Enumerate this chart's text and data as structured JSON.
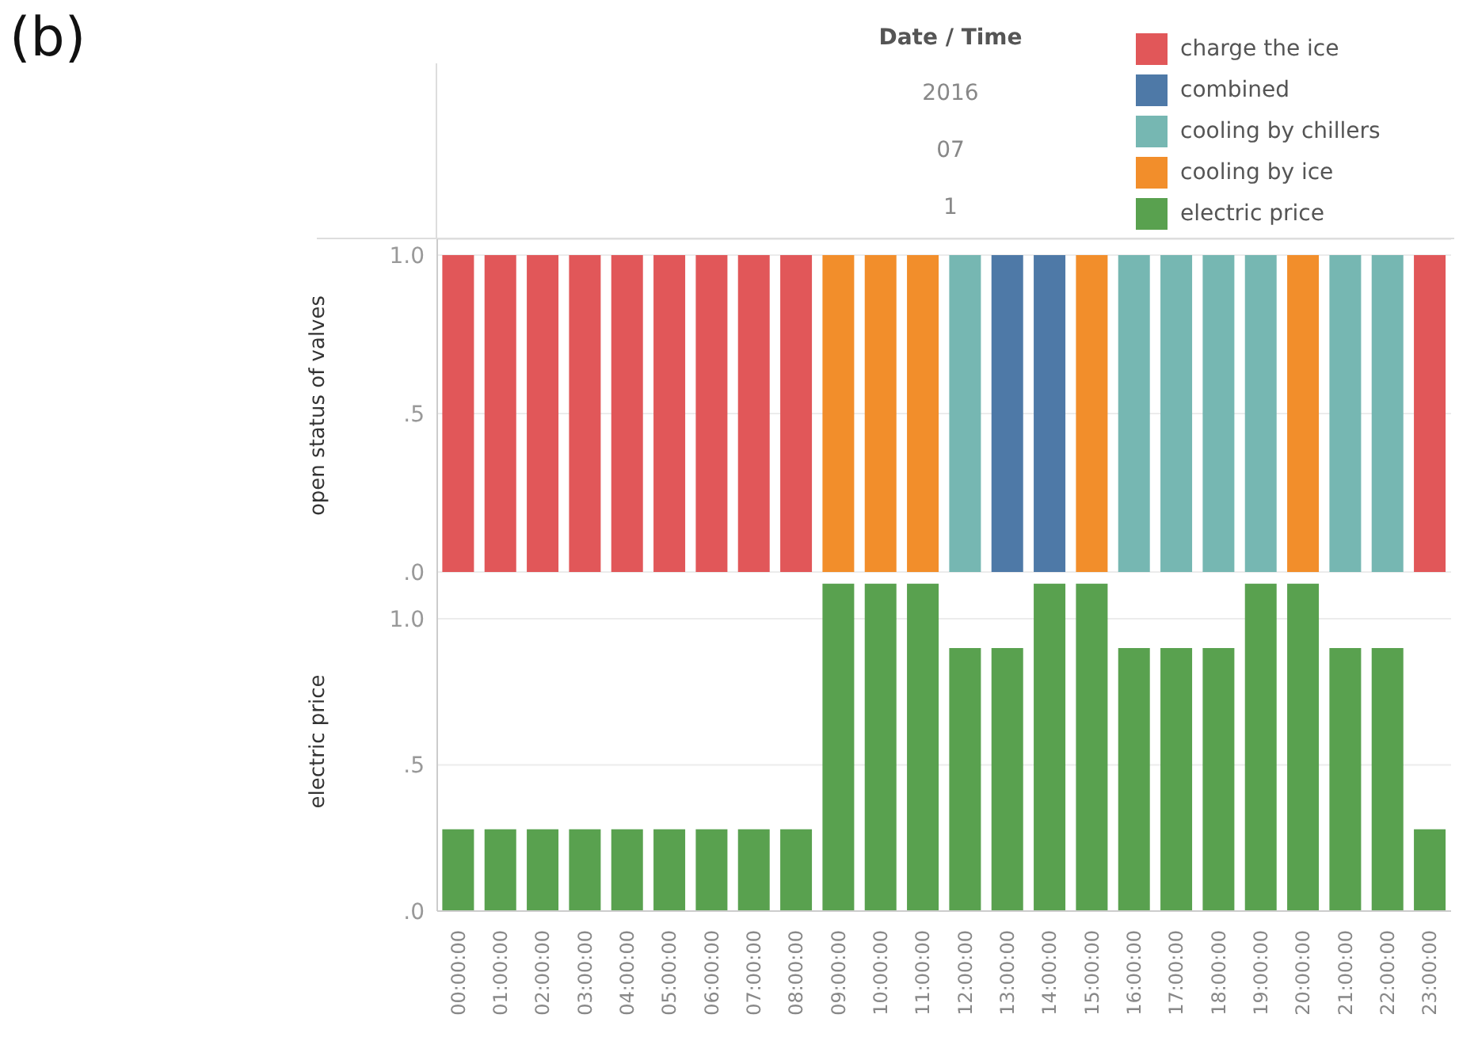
{
  "chart_data": [
    {
      "type": "bar",
      "title": "(b)",
      "xlabel": "Date / Time",
      "annotations": [
        "2016",
        "07",
        "1"
      ],
      "ylabel": "open status of valves",
      "stacked": true,
      "legend": "top right",
      "grid": "y",
      "tick_labels": "y",
      "ylim": [
        0,
        1.05
      ],
      "yticks": [
        {
          "value": 0,
          "label": ".0"
        },
        {
          "value": 0.5,
          "label": ".5"
        },
        {
          "value": 1,
          "label": "1.0"
        }
      ],
      "series": [
        {
          "name": "charge the ice",
          "color": "#e15759",
          "values": [
            1,
            1,
            1,
            1,
            1,
            1,
            1,
            1,
            1,
            null,
            null,
            null,
            null,
            null,
            null,
            null,
            null,
            null,
            null,
            null,
            null,
            null,
            null,
            1
          ]
        },
        {
          "name": "combined",
          "color": "#4e79a7",
          "values": [
            null,
            null,
            null,
            null,
            null,
            null,
            null,
            null,
            null,
            null,
            null,
            null,
            null,
            1,
            1,
            null,
            null,
            null,
            null,
            null,
            null,
            null,
            null,
            null
          ]
        },
        {
          "name": "cooling by chillers",
          "color": "#76b7b2",
          "values": [
            null,
            null,
            null,
            null,
            null,
            null,
            null,
            null,
            null,
            null,
            null,
            null,
            1,
            null,
            null,
            null,
            1,
            1,
            1,
            1,
            null,
            1,
            1,
            null
          ]
        },
        {
          "name": "cooling by ice",
          "color": "#f28e2b",
          "values": [
            null,
            null,
            null,
            null,
            null,
            null,
            null,
            null,
            null,
            1,
            1,
            1,
            null,
            null,
            null,
            1,
            null,
            null,
            null,
            null,
            1,
            null,
            null,
            null
          ]
        }
      ]
    },
    {
      "type": "bar",
      "ylabel": "electric price",
      "legend": "top right",
      "grid": "y",
      "categories": [
        "00:00:00",
        "01:00:00",
        "02:00:00",
        "03:00:00",
        "04:00:00",
        "05:00:00",
        "06:00:00",
        "07:00:00",
        "08:00:00",
        "09:00:00",
        "10:00:00",
        "11:00:00",
        "12:00:00",
        "13:00:00",
        "14:00:00",
        "15:00:00",
        "16:00:00",
        "17:00:00",
        "18:00:00",
        "19:00:00",
        "20:00:00",
        "21:00:00",
        "22:00:00",
        "23:00:00"
      ],
      "ylim": [
        0,
        1.16
      ],
      "yticks": [
        {
          "value": 0,
          "label": ".0"
        },
        {
          "value": 0.5,
          "label": ".5"
        },
        {
          "value": 1,
          "label": "1.0"
        }
      ],
      "series": [
        {
          "name": "electric price",
          "color": "#59a14f",
          "values": [
            0.28,
            0.28,
            0.28,
            0.28,
            0.28,
            0.28,
            0.28,
            0.28,
            0.28,
            1.12,
            1.12,
            1.12,
            0.9,
            0.9,
            1.12,
            1.12,
            0.9,
            0.9,
            0.9,
            1.12,
            1.12,
            0.9,
            0.9,
            0.28
          ]
        }
      ]
    }
  ]
}
